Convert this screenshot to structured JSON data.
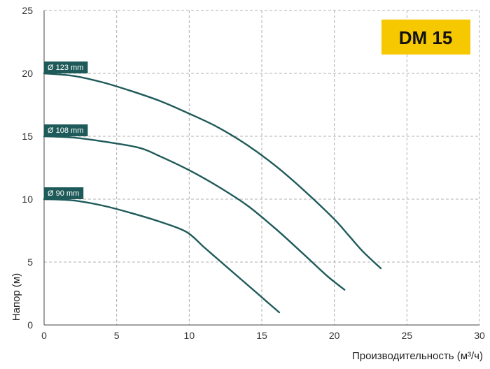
{
  "chart_data": {
    "type": "line",
    "badge": "DM 15",
    "xlabel": "Производительность (м³/ч)",
    "ylabel": "Напор (м)",
    "xlim": [
      0,
      30
    ],
    "ylim": [
      0,
      25
    ],
    "xticks": [
      "0",
      "5",
      "10",
      "15",
      "20",
      "25",
      "30"
    ],
    "yticks": [
      "0",
      "5",
      "10",
      "15",
      "20",
      "25"
    ],
    "grid": true,
    "colors": {
      "line": "#1f5a5a",
      "label_bg": "#1f5a5a",
      "badge_bg": "#f5c800",
      "grid": "#b0b0b0"
    },
    "series": [
      {
        "name": "Ø 123 mm",
        "x": [
          0,
          2,
          4,
          6,
          8,
          10,
          12,
          14,
          16,
          18,
          20,
          21,
          22,
          23.2
        ],
        "y": [
          20.0,
          19.8,
          19.3,
          18.6,
          17.8,
          16.8,
          15.7,
          14.3,
          12.6,
          10.6,
          8.4,
          7.1,
          5.8,
          4.5
        ]
      },
      {
        "name": "Ø 108 mm",
        "x": [
          0,
          2,
          4,
          6.5,
          8,
          10,
          12,
          14,
          16,
          18,
          19.5,
          20.7
        ],
        "y": [
          15.0,
          14.9,
          14.6,
          14.1,
          13.4,
          12.3,
          11.0,
          9.5,
          7.6,
          5.5,
          3.9,
          2.8
        ]
      },
      {
        "name": "Ø 90 mm",
        "x": [
          0,
          2,
          4,
          6,
          8,
          9.8,
          11,
          12,
          13,
          14,
          15,
          16.2
        ],
        "y": [
          10.0,
          9.9,
          9.5,
          8.9,
          8.2,
          7.4,
          6.2,
          5.2,
          4.2,
          3.2,
          2.2,
          1.0
        ]
      }
    ]
  }
}
